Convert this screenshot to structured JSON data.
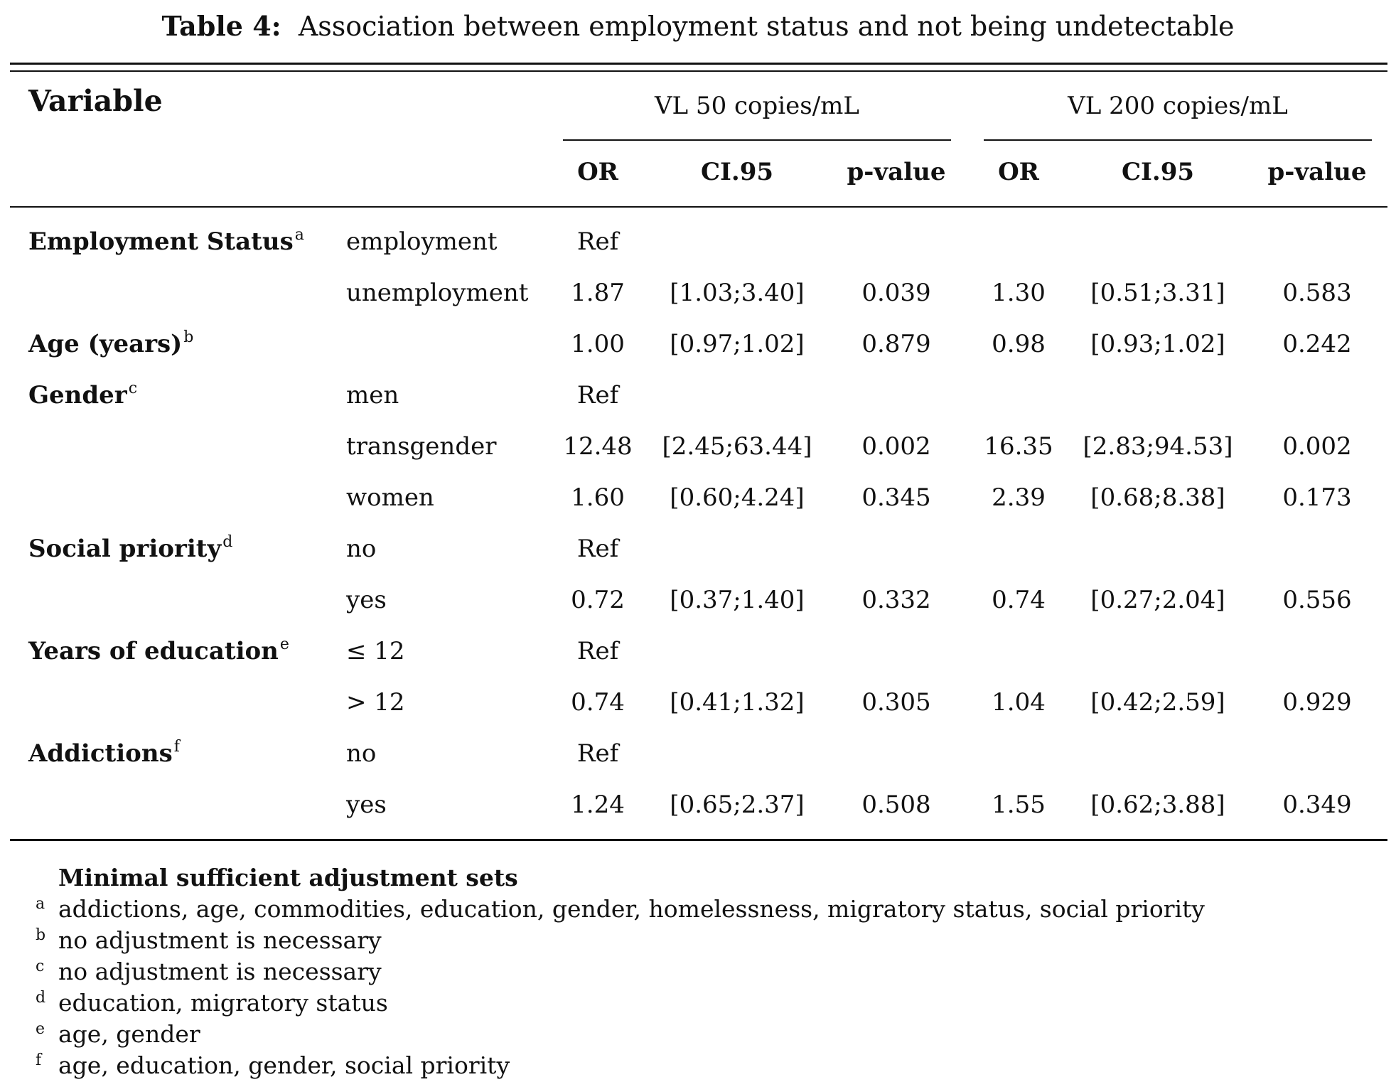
{
  "caption": {
    "label": "Table 4:",
    "text": "Association between employment status and not being undetectable"
  },
  "header": {
    "variable": "Variable",
    "group1": "VL 50 copies/mL",
    "group2": "VL 200 copies/mL",
    "or": "OR",
    "ci": "CI.95",
    "p": "p-value"
  },
  "groups": [
    {
      "name": "Employment Status",
      "sup": "a",
      "rows": [
        {
          "level": "employment",
          "or1": "Ref",
          "ci1": "",
          "p1": "",
          "or2": "",
          "ci2": "",
          "p2": ""
        },
        {
          "level": "unemployment",
          "or1": "1.87",
          "ci1": "[1.03;3.40]",
          "p1": "0.039",
          "or2": "1.30",
          "ci2": "[0.51;3.31]",
          "p2": "0.583"
        }
      ]
    },
    {
      "name": "Age (years)",
      "sup": "b",
      "rows": [
        {
          "level": "",
          "or1": "1.00",
          "ci1": "[0.97;1.02]",
          "p1": "0.879",
          "or2": "0.98",
          "ci2": "[0.93;1.02]",
          "p2": "0.242"
        }
      ]
    },
    {
      "name": "Gender",
      "sup": "c",
      "rows": [
        {
          "level": "men",
          "or1": "Ref",
          "ci1": "",
          "p1": "",
          "or2": "",
          "ci2": "",
          "p2": ""
        },
        {
          "level": "transgender",
          "or1": "12.48",
          "ci1": "[2.45;63.44]",
          "p1": "0.002",
          "or2": "16.35",
          "ci2": "[2.83;94.53]",
          "p2": "0.002"
        },
        {
          "level": "women",
          "or1": "1.60",
          "ci1": "[0.60;4.24]",
          "p1": "0.345",
          "or2": "2.39",
          "ci2": "[0.68;8.38]",
          "p2": "0.173"
        }
      ]
    },
    {
      "name": "Social priority",
      "sup": "d",
      "rows": [
        {
          "level": "no",
          "or1": "Ref",
          "ci1": "",
          "p1": "",
          "or2": "",
          "ci2": "",
          "p2": ""
        },
        {
          "level": "yes",
          "or1": "0.72",
          "ci1": "[0.37;1.40]",
          "p1": "0.332",
          "or2": "0.74",
          "ci2": "[0.27;2.04]",
          "p2": "0.556"
        }
      ]
    },
    {
      "name": "Years of education",
      "sup": "e",
      "rows": [
        {
          "level": "≤ 12",
          "or1": "Ref",
          "ci1": "",
          "p1": "",
          "or2": "",
          "ci2": "",
          "p2": ""
        },
        {
          "level": "> 12",
          "or1": "0.74",
          "ci1": "[0.41;1.32]",
          "p1": "0.305",
          "or2": "1.04",
          "ci2": "[0.42;2.59]",
          "p2": "0.929"
        }
      ]
    },
    {
      "name": "Addictions",
      "sup": "f",
      "rows": [
        {
          "level": "no",
          "or1": "Ref",
          "ci1": "",
          "p1": "",
          "or2": "",
          "ci2": "",
          "p2": ""
        },
        {
          "level": "yes",
          "or1": "1.24",
          "ci1": "[0.65;2.37]",
          "p1": "0.508",
          "or2": "1.55",
          "ci2": "[0.62;3.88]",
          "p2": "0.349"
        }
      ]
    }
  ],
  "footnotes": {
    "title": "Minimal sufficient adjustment sets",
    "items": [
      {
        "mark": "a",
        "text": "addictions, age, commodities, education, gender, homelessness, migratory status, social priority"
      },
      {
        "mark": "b",
        "text": "no adjustment is necessary"
      },
      {
        "mark": "c",
        "text": "no adjustment is necessary"
      },
      {
        "mark": "d",
        "text": "education, migratory status"
      },
      {
        "mark": "e",
        "text": "age, gender"
      },
      {
        "mark": "f",
        "text": "age, education, gender, social priority"
      }
    ]
  }
}
